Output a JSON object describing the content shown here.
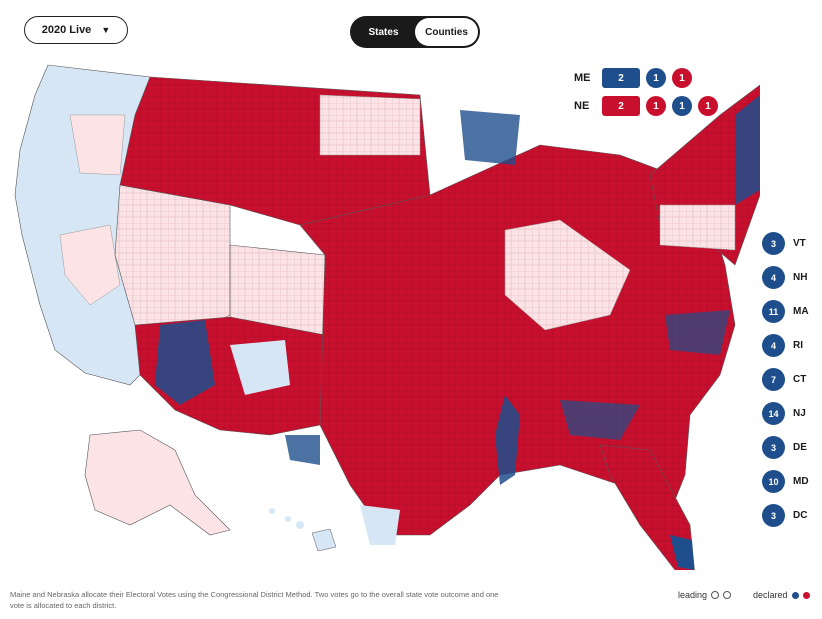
{
  "controls": {
    "year_dropdown": "2020 Live",
    "toggle": {
      "states_label": "States",
      "counties_label": "Counties",
      "selected": "States"
    }
  },
  "colors": {
    "republican": "#c8102e",
    "democrat": "#1f4e8c",
    "lean_republican": "#fbe3e6",
    "lean_democrat": "#d6e6f5",
    "background": "#ffffff"
  },
  "split_states": {
    "ME": {
      "label": "ME",
      "statewide": "2",
      "statewide_party": "democrat",
      "districts": [
        {
          "value": "1",
          "party": "democrat"
        },
        {
          "value": "1",
          "party": "republican"
        }
      ]
    },
    "NE": {
      "label": "NE",
      "statewide": "2",
      "statewide_party": "republican",
      "districts": [
        {
          "value": "1",
          "party": "republican"
        },
        {
          "value": "1",
          "party": "democrat"
        },
        {
          "value": "1",
          "party": "republican"
        }
      ]
    }
  },
  "east_states": [
    {
      "votes": "3",
      "abbr": "VT"
    },
    {
      "votes": "4",
      "abbr": "NH"
    },
    {
      "votes": "11",
      "abbr": "MA"
    },
    {
      "votes": "4",
      "abbr": "RI"
    },
    {
      "votes": "7",
      "abbr": "CT"
    },
    {
      "votes": "14",
      "abbr": "NJ"
    },
    {
      "votes": "3",
      "abbr": "DE"
    },
    {
      "votes": "10",
      "abbr": "MD"
    },
    {
      "votes": "3",
      "abbr": "DC"
    }
  ],
  "footnote": "Maine and Nebraska allocate their Electoral Votes using the Congressional District Method. Two votes go to the overall state vote outcome and one vote is allocated to each district.",
  "legend": {
    "leading": "leading",
    "declared": "declared"
  }
}
